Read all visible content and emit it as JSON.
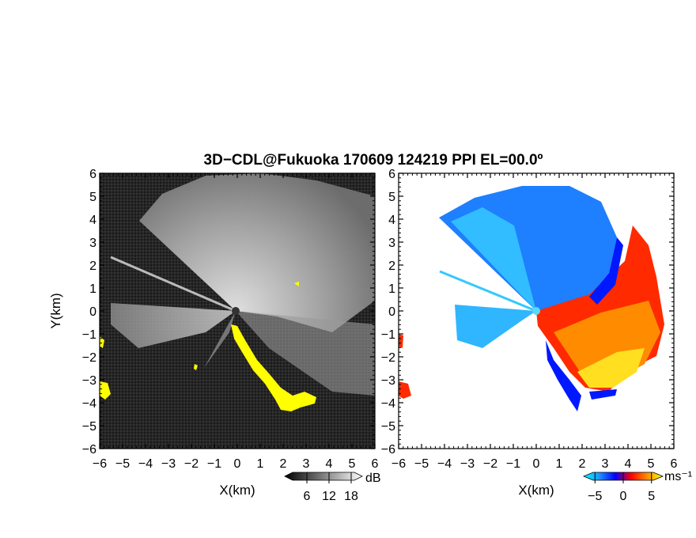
{
  "chart_data": {
    "type": "heatmap",
    "title": "3D−CDL@Fukuoka 170609 124219 PPI EL=00.0º",
    "panels": [
      {
        "field": "intensity",
        "xlabel": "X(km)",
        "ylabel": "Y(km)",
        "xlim": [
          -6,
          6
        ],
        "ylim": [
          -6,
          6
        ],
        "colorbar": {
          "unit": "dB",
          "ticks": [
            "6",
            "12",
            "18"
          ],
          "range": [
            0,
            21
          ],
          "colors": [
            "#000000",
            "#ffffff"
          ]
        },
        "overlay_color": "#ffff00",
        "background_color": "#222222"
      },
      {
        "field": "doppler_velocity",
        "xlabel": "X(km)",
        "ylabel": "",
        "xlim": [
          -6,
          6
        ],
        "ylim": [
          -6,
          6
        ],
        "colorbar": {
          "unit": "ms⁻¹",
          "ticks": [
            "−5",
            "0",
            "5"
          ],
          "range": [
            -7,
            7
          ],
          "colors": [
            "#00ffff",
            "#1e90ff",
            "#0000ff",
            "#ff0000",
            "#ff8c00",
            "#ffff00"
          ]
        },
        "background_color": "#ffffff"
      }
    ],
    "x_ticks": [
      "−6",
      "−5",
      "−4",
      "−3",
      "−2",
      "−1",
      "0",
      "1",
      "2",
      "3",
      "4",
      "5",
      "6"
    ],
    "y_ticks": [
      "6",
      "5",
      "4",
      "3",
      "2",
      "1",
      "0",
      "−1",
      "−2",
      "−3",
      "−4",
      "−5",
      "−6"
    ]
  }
}
